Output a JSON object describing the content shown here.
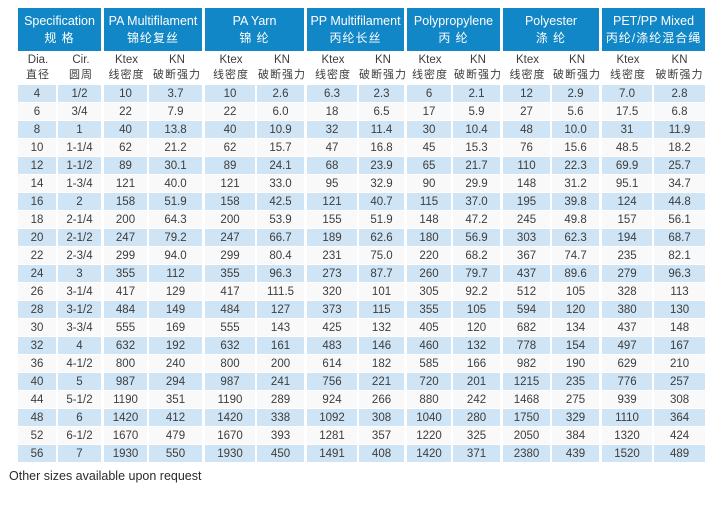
{
  "page": {
    "footer_note": "Other sizes available upon request"
  },
  "colors": {
    "header_bg": "#1187c7",
    "header_text": "#ffffff",
    "row_alt_bg": "#cfe4f4",
    "row_bg": "#f9f9f9",
    "body_text": "#3d3d3d"
  },
  "table": {
    "groups": [
      {
        "en": "Specification",
        "zh": "规 格",
        "cols": [
          {
            "en": "Dia.",
            "zh": "直径"
          },
          {
            "en": "Cir.",
            "zh": "圆周"
          }
        ]
      },
      {
        "en": "PA Multifilament",
        "zh": "锦纶复丝",
        "cols": [
          {
            "en": "Ktex",
            "zh": "线密度"
          },
          {
            "en": "KN",
            "zh": "破断强力"
          }
        ]
      },
      {
        "en": "PA Yarn",
        "zh": "锦 纶",
        "cols": [
          {
            "en": "Ktex",
            "zh": "线密度"
          },
          {
            "en": "KN",
            "zh": "破断强力"
          }
        ]
      },
      {
        "en": "PP Multifilament",
        "zh": "丙纶长丝",
        "cols": [
          {
            "en": "Ktex",
            "zh": "线密度"
          },
          {
            "en": "KN",
            "zh": "破断强力"
          }
        ]
      },
      {
        "en": "Polypropylene",
        "zh": "丙 纶",
        "cols": [
          {
            "en": "Ktex",
            "zh": "线密度"
          },
          {
            "en": "KN",
            "zh": "破断强力"
          }
        ]
      },
      {
        "en": "Polyester",
        "zh": "涤 纶",
        "cols": [
          {
            "en": "Ktex",
            "zh": "线密度"
          },
          {
            "en": "KN",
            "zh": "破断强力"
          }
        ]
      },
      {
        "en": "PET/PP Mixed",
        "zh": "丙纶/涤纶混合绳",
        "cols": [
          {
            "en": "Ktex",
            "zh": "线密度"
          },
          {
            "en": "KN",
            "zh": "破断强力"
          }
        ]
      }
    ],
    "rows": [
      [
        "4",
        "1/2",
        "10",
        "3.7",
        "10",
        "2.6",
        "6.3",
        "2.3",
        "6",
        "2.1",
        "12",
        "2.9",
        "7.0",
        "2.8"
      ],
      [
        "6",
        "3/4",
        "22",
        "7.9",
        "22",
        "6.0",
        "18",
        "6.5",
        "17",
        "5.9",
        "27",
        "5.6",
        "17.5",
        "6.8"
      ],
      [
        "8",
        "1",
        "40",
        "13.8",
        "40",
        "10.9",
        "32",
        "11.4",
        "30",
        "10.4",
        "48",
        "10.0",
        "31",
        "11.9"
      ],
      [
        "10",
        "1-1/4",
        "62",
        "21.2",
        "62",
        "15.7",
        "47",
        "16.8",
        "45",
        "15.3",
        "76",
        "15.6",
        "48.5",
        "18.2"
      ],
      [
        "12",
        "1-1/2",
        "89",
        "30.1",
        "89",
        "24.1",
        "68",
        "23.9",
        "65",
        "21.7",
        "110",
        "22.3",
        "69.9",
        "25.7"
      ],
      [
        "14",
        "1-3/4",
        "121",
        "40.0",
        "121",
        "33.0",
        "95",
        "32.9",
        "90",
        "29.9",
        "148",
        "31.2",
        "95.1",
        "34.7"
      ],
      [
        "16",
        "2",
        "158",
        "51.9",
        "158",
        "42.5",
        "121",
        "40.7",
        "115",
        "37.0",
        "195",
        "39.8",
        "124",
        "44.8"
      ],
      [
        "18",
        "2-1/4",
        "200",
        "64.3",
        "200",
        "53.9",
        "155",
        "51.9",
        "148",
        "47.2",
        "245",
        "49.8",
        "157",
        "56.1"
      ],
      [
        "20",
        "2-1/2",
        "247",
        "79.2",
        "247",
        "66.7",
        "189",
        "62.6",
        "180",
        "56.9",
        "303",
        "62.3",
        "194",
        "68.7"
      ],
      [
        "22",
        "2-3/4",
        "299",
        "94.0",
        "299",
        "80.4",
        "231",
        "75.0",
        "220",
        "68.2",
        "367",
        "74.7",
        "235",
        "82.1"
      ],
      [
        "24",
        "3",
        "355",
        "112",
        "355",
        "96.3",
        "273",
        "87.7",
        "260",
        "79.7",
        "437",
        "89.6",
        "279",
        "96.3"
      ],
      [
        "26",
        "3-1/4",
        "417",
        "129",
        "417",
        "111.5",
        "320",
        "101",
        "305",
        "92.2",
        "512",
        "105",
        "328",
        "113"
      ],
      [
        "28",
        "3-1/2",
        "484",
        "149",
        "484",
        "127",
        "373",
        "115",
        "355",
        "105",
        "594",
        "120",
        "380",
        "130"
      ],
      [
        "30",
        "3-3/4",
        "555",
        "169",
        "555",
        "143",
        "425",
        "132",
        "405",
        "120",
        "682",
        "134",
        "437",
        "148"
      ],
      [
        "32",
        "4",
        "632",
        "192",
        "632",
        "161",
        "483",
        "146",
        "460",
        "132",
        "778",
        "154",
        "497",
        "167"
      ],
      [
        "36",
        "4-1/2",
        "800",
        "240",
        "800",
        "200",
        "614",
        "182",
        "585",
        "166",
        "982",
        "190",
        "629",
        "210"
      ],
      [
        "40",
        "5",
        "987",
        "294",
        "987",
        "241",
        "756",
        "221",
        "720",
        "201",
        "1215",
        "235",
        "776",
        "257"
      ],
      [
        "44",
        "5-1/2",
        "1190",
        "351",
        "1190",
        "289",
        "924",
        "266",
        "880",
        "242",
        "1468",
        "275",
        "939",
        "308"
      ],
      [
        "48",
        "6",
        "1420",
        "412",
        "1420",
        "338",
        "1092",
        "308",
        "1040",
        "280",
        "1750",
        "329",
        "1110",
        "364"
      ],
      [
        "52",
        "6-1/2",
        "1670",
        "479",
        "1670",
        "393",
        "1281",
        "357",
        "1220",
        "325",
        "2050",
        "384",
        "1320",
        "424"
      ],
      [
        "56",
        "7",
        "1930",
        "550",
        "1930",
        "450",
        "1491",
        "408",
        "1420",
        "371",
        "2380",
        "439",
        "1520",
        "489"
      ]
    ]
  }
}
